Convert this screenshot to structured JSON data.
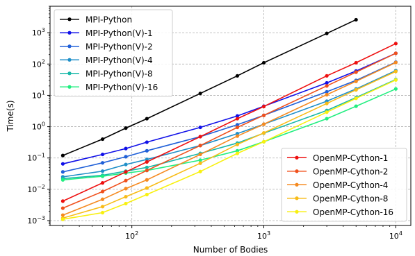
{
  "chart_data": {
    "type": "line",
    "title": "",
    "xlabel": "Number of Bodies",
    "ylabel": "Time(s)",
    "xscale": "log",
    "yscale": "log",
    "xlim": [
      24,
      13000
    ],
    "ylim": [
      0.0007,
      7000
    ],
    "grid": true,
    "x_ticks": [
      {
        "value": 100,
        "base": "10",
        "exp": "2"
      },
      {
        "value": 1000,
        "base": "10",
        "exp": "3"
      },
      {
        "value": 10000,
        "base": "10",
        "exp": "4"
      }
    ],
    "y_ticks": [
      {
        "value": 0.001,
        "base": "10",
        "exp": "−3"
      },
      {
        "value": 0.01,
        "base": "10",
        "exp": "−2"
      },
      {
        "value": 0.1,
        "base": "10",
        "exp": "−1"
      },
      {
        "value": 1,
        "base": "10",
        "exp": "0"
      },
      {
        "value": 10,
        "base": "10",
        "exp": "1"
      },
      {
        "value": 100,
        "base": "10",
        "exp": "2"
      },
      {
        "value": 1000,
        "base": "10",
        "exp": "3"
      }
    ],
    "legends": [
      {
        "position": "upper-left",
        "entries": [
          0,
          1,
          2,
          3,
          4,
          5
        ]
      },
      {
        "position": "lower-right",
        "entries": [
          6,
          7,
          8,
          9,
          10
        ]
      }
    ],
    "series": [
      {
        "name": "MPI-Python",
        "color": "#000000",
        "x": [
          30,
          60,
          90,
          130,
          330,
          630,
          1000,
          3000,
          5000
        ],
        "y": [
          0.12,
          0.4,
          0.9,
          1.8,
          11.5,
          42,
          110,
          950,
          2600
        ]
      },
      {
        "name": "MPI-Python(V)-1",
        "color": "#1010e8",
        "x": [
          30,
          60,
          90,
          130,
          330,
          630,
          1000,
          3000,
          5000,
          10000
        ],
        "y": [
          0.065,
          0.13,
          0.2,
          0.32,
          0.95,
          2.2,
          4.5,
          25,
          60,
          220
        ]
      },
      {
        "name": "MPI-Python(V)-2",
        "color": "#2060d8",
        "x": [
          30,
          60,
          90,
          130,
          330,
          630,
          1000,
          3000,
          5000,
          10000
        ],
        "y": [
          0.036,
          0.07,
          0.11,
          0.17,
          0.48,
          1.15,
          2.3,
          13,
          30,
          115
        ]
      },
      {
        "name": "MPI-Python(V)-4",
        "color": "#1f8fc8",
        "x": [
          30,
          60,
          90,
          130,
          330,
          630,
          1000,
          3000,
          5000,
          10000
        ],
        "y": [
          0.025,
          0.038,
          0.062,
          0.09,
          0.25,
          0.6,
          1.2,
          6.5,
          16,
          62
        ]
      },
      {
        "name": "MPI-Python(V)-8",
        "color": "#18b8a8",
        "x": [
          30,
          60,
          90,
          130,
          330,
          630,
          1000,
          3000,
          5000,
          10000
        ],
        "y": [
          0.022,
          0.028,
          0.038,
          0.05,
          0.14,
          0.3,
          0.62,
          3.3,
          8.5,
          32
        ]
      },
      {
        "name": "MPI-Python(V)-16",
        "color": "#22ee80",
        "x": [
          30,
          60,
          90,
          130,
          330,
          630,
          1000,
          3000,
          5000,
          10000
        ],
        "y": [
          0.02,
          0.026,
          0.033,
          0.04,
          0.085,
          0.17,
          0.33,
          1.8,
          4.5,
          16
        ]
      },
      {
        "name": "OpenMP-Cython-1",
        "color": "#ee1010",
        "x": [
          30,
          60,
          90,
          130,
          330,
          630,
          1000,
          3000,
          5000,
          10000
        ],
        "y": [
          0.0042,
          0.016,
          0.036,
          0.075,
          0.48,
          1.8,
          4.4,
          42,
          110,
          450
        ]
      },
      {
        "name": "OpenMP-Cython-2",
        "color": "#f0501c",
        "x": [
          30,
          60,
          90,
          130,
          330,
          630,
          1000,
          3000,
          5000,
          10000
        ],
        "y": [
          0.0025,
          0.0085,
          0.019,
          0.04,
          0.25,
          0.95,
          2.3,
          20,
          55,
          220
        ]
      },
      {
        "name": "OpenMP-Cython-4",
        "color": "#f58a20",
        "x": [
          30,
          60,
          90,
          130,
          330,
          630,
          1000,
          3000,
          5000,
          10000
        ],
        "y": [
          0.0015,
          0.0048,
          0.0105,
          0.02,
          0.13,
          0.5,
          1.2,
          10.5,
          28,
          112
        ]
      },
      {
        "name": "OpenMP-Cython-8",
        "color": "#f8bc18",
        "x": [
          30,
          60,
          90,
          130,
          330,
          630,
          1000,
          3000,
          5000,
          10000
        ],
        "y": [
          0.0012,
          0.0028,
          0.0058,
          0.011,
          0.068,
          0.27,
          0.63,
          5.5,
          15,
          58
        ]
      },
      {
        "name": "OpenMP-Cython-16",
        "color": "#f8f010",
        "x": [
          30,
          60,
          90,
          130,
          330,
          630,
          1000,
          3000,
          5000,
          10000
        ],
        "y": [
          0.0011,
          0.0018,
          0.0035,
          0.0068,
          0.037,
          0.14,
          0.33,
          2.9,
          8,
          31
        ]
      }
    ]
  }
}
